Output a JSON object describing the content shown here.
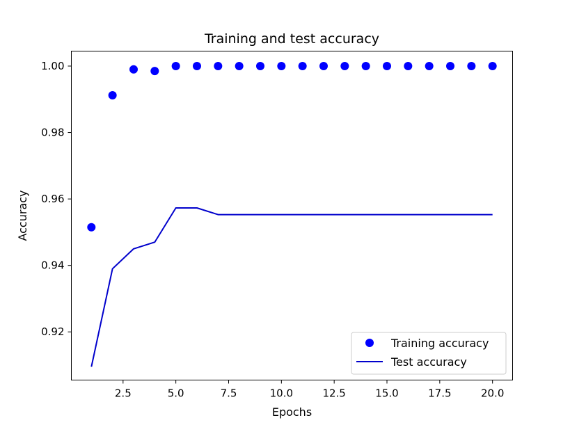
{
  "chart_data": {
    "type": "line",
    "title": "Training and test accuracy",
    "xlabel": "Epochs",
    "ylabel": "Accuracy",
    "xlim": [
      0.05,
      20.95
    ],
    "ylim": [
      0.9055,
      1.0045
    ],
    "xticks": [
      2.5,
      5.0,
      7.5,
      10.0,
      12.5,
      15.0,
      17.5,
      20.0
    ],
    "xtick_labels": [
      "2.5",
      "5.0",
      "7.5",
      "10.0",
      "12.5",
      "15.0",
      "17.5",
      "20.0"
    ],
    "yticks": [
      0.92,
      0.94,
      0.96,
      0.98,
      1.0
    ],
    "ytick_labels": [
      "0.92",
      "0.94",
      "0.96",
      "0.98",
      "1.00"
    ],
    "grid": false,
    "legend_position": "bottom-right",
    "x": [
      1,
      2,
      3,
      4,
      5,
      6,
      7,
      8,
      9,
      10,
      11,
      12,
      13,
      14,
      15,
      16,
      17,
      18,
      19,
      20
    ],
    "series": [
      {
        "name": "Training accuracy",
        "style": "markers",
        "color": "#0000ff",
        "values": [
          0.9515,
          0.9912,
          0.999,
          0.9985,
          1.0,
          1.0,
          1.0,
          1.0,
          1.0,
          1.0,
          1.0,
          1.0,
          1.0,
          1.0,
          1.0,
          1.0,
          1.0,
          1.0,
          1.0,
          1.0
        ]
      },
      {
        "name": "Test accuracy",
        "style": "line",
        "color": "#0000cc",
        "values": [
          0.9095,
          0.939,
          0.945,
          0.947,
          0.9573,
          0.9573,
          0.9553,
          0.9553,
          0.9553,
          0.9553,
          0.9553,
          0.9553,
          0.9553,
          0.9553,
          0.9553,
          0.9553,
          0.9553,
          0.9553,
          0.9553,
          0.9553
        ]
      }
    ]
  }
}
